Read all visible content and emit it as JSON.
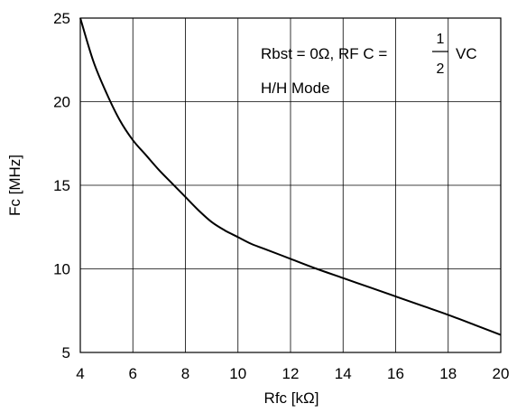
{
  "chart_data": {
    "type": "line",
    "xlabel": "Rfc [kΩ]",
    "ylabel": "Fc [MHz]",
    "xlim": [
      4,
      20
    ],
    "ylim": [
      5,
      25
    ],
    "x_ticks": [
      4,
      6,
      8,
      10,
      12,
      14,
      16,
      18,
      20
    ],
    "y_ticks": [
      5,
      10,
      15,
      20,
      25
    ],
    "x_tick_labels": [
      "4",
      "6",
      "8",
      "10",
      "12",
      "14",
      "16",
      "18",
      "20"
    ],
    "y_tick_labels": [
      "5",
      "10",
      "15",
      "20",
      "25"
    ],
    "grid": true,
    "annotations": {
      "condition_prefix": "Rbst = 0Ω, RF C =",
      "fraction_numerator": "1",
      "fraction_denominator": "2",
      "condition_suffix": "VC",
      "mode": "H/H Mode"
    },
    "series": [
      {
        "x": [
          4.0,
          4.5,
          5.0,
          5.5,
          6.0,
          6.5,
          7.0,
          7.5,
          8.0,
          8.5,
          9.0,
          9.5,
          10.0,
          10.5,
          11.0,
          12.0,
          13.0,
          14.0,
          15.0,
          16.0,
          17.0,
          18.0,
          19.0,
          20.0
        ],
        "y": [
          25.0,
          22.4,
          20.5,
          18.9,
          17.7,
          16.8,
          15.9,
          15.1,
          14.3,
          13.5,
          12.8,
          12.3,
          11.9,
          11.5,
          11.2,
          10.6,
          10.0,
          9.45,
          8.9,
          8.35,
          7.8,
          7.25,
          6.65,
          6.05
        ]
      }
    ]
  }
}
